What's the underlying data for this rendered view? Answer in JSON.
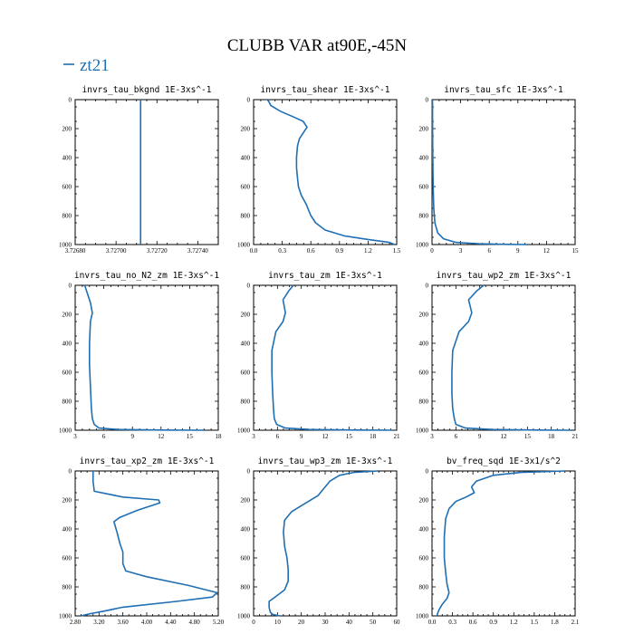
{
  "figure_title": "CLUBB VAR at90E,-45N",
  "legend": {
    "label": "zt21",
    "color": "#1f6fb4"
  },
  "chart_data": [
    {
      "type": "line",
      "title": "invrs_tau_bkgnd   1E-3xs^-1",
      "xlim": [
        3.7268,
        3.7275
      ],
      "xticks": [
        3.7268,
        3.727,
        3.7272,
        3.7274
      ],
      "xtick_labels": [
        "3.72680",
        "3.72700",
        "3.72720",
        "3.72740"
      ],
      "ylim": [
        1000,
        0
      ],
      "yticks": [
        0,
        200,
        400,
        600,
        800,
        1000
      ],
      "series": [
        {
          "x": [
            3.72712,
            3.72712
          ],
          "y": [
            0,
            1000
          ]
        }
      ]
    },
    {
      "type": "line",
      "title": "invrs_tau_shear   1E-3xs^-1",
      "xlim": [
        0.0,
        1.5
      ],
      "xticks": [
        0.0,
        0.3,
        0.6,
        0.9,
        1.2,
        1.5
      ],
      "xtick_labels": [
        "0.0",
        "0.3",
        "0.6",
        "0.9",
        "1.2",
        "1.5"
      ],
      "ylim": [
        1000,
        0
      ],
      "yticks": [
        0,
        200,
        400,
        600,
        800,
        1000
      ],
      "series": [
        {
          "x": [
            0.15,
            0.18,
            0.28,
            0.42,
            0.52,
            0.56,
            0.52,
            0.48,
            0.46,
            0.45,
            0.45,
            0.46,
            0.47,
            0.48,
            0.5,
            0.55,
            0.6,
            0.65,
            0.75,
            0.95,
            1.2,
            1.42,
            1.48
          ],
          "y": [
            0,
            40,
            80,
            120,
            150,
            190,
            230,
            270,
            320,
            400,
            470,
            540,
            600,
            620,
            660,
            720,
            800,
            850,
            900,
            940,
            965,
            985,
            1000
          ]
        }
      ]
    },
    {
      "type": "line",
      "title": "invrs_tau_sfc   1E-3xs^-1",
      "xlim": [
        0,
        15
      ],
      "xticks": [
        0,
        3,
        6,
        9,
        12,
        15
      ],
      "xtick_labels": [
        "0",
        "3",
        "6",
        "9",
        "12",
        "15"
      ],
      "ylim": [
        1000,
        0
      ],
      "yticks": [
        0,
        200,
        400,
        600,
        800,
        1000
      ],
      "series": [
        {
          "x": [
            0.05,
            0.06,
            0.08,
            0.12,
            0.18,
            0.3,
            0.6,
            1.2,
            2.5,
            5.0,
            8.0,
            10.0
          ],
          "y": [
            0,
            200,
            400,
            600,
            750,
            850,
            920,
            960,
            985,
            995,
            999,
            1000
          ]
        }
      ]
    },
    {
      "type": "line",
      "title": "invrs_tau_no_N2_zm   1E-3xs^-1",
      "xlim": [
        3,
        18
      ],
      "xticks": [
        3,
        6,
        9,
        12,
        15,
        18
      ],
      "xtick_labels": [
        "3",
        "6",
        "9",
        "12",
        "15",
        "18"
      ],
      "ylim": [
        1000,
        0
      ],
      "yticks": [
        0,
        200,
        400,
        600,
        800,
        1000
      ],
      "series": [
        {
          "x": [
            4.0,
            4.3,
            4.6,
            4.8,
            4.6,
            4.5,
            4.5,
            4.6,
            4.7,
            4.8,
            5.0,
            5.5,
            7.5,
            12.0,
            16.5
          ],
          "y": [
            0,
            60,
            120,
            190,
            250,
            400,
            550,
            700,
            850,
            920,
            960,
            985,
            995,
            999,
            1000
          ]
        }
      ]
    },
    {
      "type": "line",
      "title": "invrs_tau_zm   1E-3xs^-1",
      "xlim": [
        3,
        21
      ],
      "xticks": [
        3,
        6,
        9,
        12,
        15,
        18,
        21
      ],
      "xtick_labels": [
        "3",
        "6",
        "9",
        "12",
        "15",
        "18",
        "21"
      ],
      "ylim": [
        1000,
        0
      ],
      "yticks": [
        0,
        200,
        400,
        600,
        800,
        1000
      ],
      "series": [
        {
          "x": [
            8.0,
            7.4,
            6.7,
            7.0,
            6.7,
            5.8,
            5.3,
            5.3,
            5.4,
            5.5,
            5.6,
            5.9,
            7.0,
            10.0,
            16.0,
            20.5
          ],
          "y": [
            0,
            40,
            100,
            190,
            250,
            320,
            450,
            600,
            750,
            850,
            920,
            960,
            985,
            995,
            999,
            1000
          ]
        }
      ]
    },
    {
      "type": "line",
      "title": "invrs_tau_wp2_zm   1E-3xs^-1",
      "xlim": [
        3,
        21
      ],
      "xticks": [
        3,
        6,
        9,
        12,
        15,
        18,
        21
      ],
      "xtick_labels": [
        "3",
        "6",
        "9",
        "12",
        "15",
        "18",
        "21"
      ],
      "ylim": [
        1000,
        0
      ],
      "yticks": [
        0,
        200,
        400,
        600,
        800,
        1000
      ],
      "series": [
        {
          "x": [
            9.5,
            8.6,
            7.6,
            8.0,
            7.6,
            6.4,
            5.6,
            5.5,
            5.5,
            5.6,
            5.8,
            6.0,
            7.2,
            10.5,
            16.0,
            20.5
          ],
          "y": [
            0,
            40,
            100,
            190,
            250,
            320,
            450,
            600,
            750,
            850,
            920,
            960,
            985,
            995,
            999,
            1000
          ]
        }
      ]
    },
    {
      "type": "line",
      "title": "invrs_tau_xp2_zm   1E-3xs^-1",
      "xlim": [
        2.8,
        5.2
      ],
      "xticks": [
        2.8,
        3.2,
        3.6,
        4.0,
        4.4,
        4.8,
        5.2
      ],
      "xtick_labels": [
        "2.80",
        "3.20",
        "3.60",
        "4.00",
        "4.40",
        "4.80",
        "5.20"
      ],
      "ylim": [
        1000,
        0
      ],
      "yticks": [
        0,
        200,
        400,
        600,
        800,
        1000
      ],
      "series": [
        {
          "x": [
            3.1,
            3.1,
            3.12,
            3.6,
            4.2,
            4.22,
            3.85,
            3.55,
            3.45,
            3.5,
            3.55,
            3.6,
            3.6,
            3.65,
            4.0,
            4.7,
            5.18,
            5.1,
            4.5,
            3.6,
            3.25,
            3.05,
            2.95,
            2.9
          ],
          "y": [
            0,
            70,
            140,
            180,
            200,
            220,
            270,
            320,
            350,
            420,
            500,
            560,
            640,
            690,
            730,
            790,
            840,
            870,
            900,
            940,
            970,
            985,
            995,
            1000
          ]
        }
      ]
    },
    {
      "type": "line",
      "title": "invrs_tau_wp3_zm   1E-3xs^-1",
      "xlim": [
        0,
        60
      ],
      "xticks": [
        0,
        10,
        20,
        30,
        40,
        50,
        60
      ],
      "xtick_labels": [
        "0",
        "10",
        "20",
        "30",
        "40",
        "50",
        "60"
      ],
      "ylim": [
        1000,
        0
      ],
      "yticks": [
        0,
        200,
        400,
        600,
        800,
        1000
      ],
      "series": [
        {
          "x": [
            52,
            42,
            36,
            32,
            29,
            27,
            22,
            16,
            13,
            12.5,
            13,
            14,
            14.5,
            14.5,
            13,
            9,
            6.5,
            6.5,
            7,
            8,
            11
          ],
          "y": [
            0,
            10,
            30,
            70,
            130,
            170,
            220,
            280,
            340,
            420,
            520,
            600,
            680,
            760,
            820,
            870,
            900,
            940,
            975,
            990,
            1000
          ]
        }
      ]
    },
    {
      "type": "line",
      "title": "bv_freq_sqd   1E-3x1/s^2",
      "xlim": [
        0,
        2.1
      ],
      "xticks": [
        0.0,
        0.3,
        0.6,
        0.9,
        1.2,
        1.5,
        1.8,
        2.1
      ],
      "xtick_labels": [
        "0.0",
        "0.3",
        "0.6",
        "0.9",
        "1.2",
        "1.5",
        "1.8",
        "2.1"
      ],
      "ylim": [
        1000,
        0
      ],
      "yticks": [
        0,
        200,
        400,
        600,
        800,
        1000
      ],
      "series": [
        {
          "x": [
            1.95,
            1.3,
            0.9,
            0.65,
            0.58,
            0.62,
            0.5,
            0.35,
            0.25,
            0.2,
            0.18,
            0.18,
            0.2,
            0.22,
            0.25,
            0.22,
            0.15,
            0.1,
            0.08,
            0.08
          ],
          "y": [
            0,
            10,
            30,
            70,
            110,
            150,
            180,
            210,
            260,
            330,
            450,
            600,
            700,
            780,
            840,
            880,
            920,
            960,
            985,
            1000
          ]
        }
      ]
    }
  ]
}
